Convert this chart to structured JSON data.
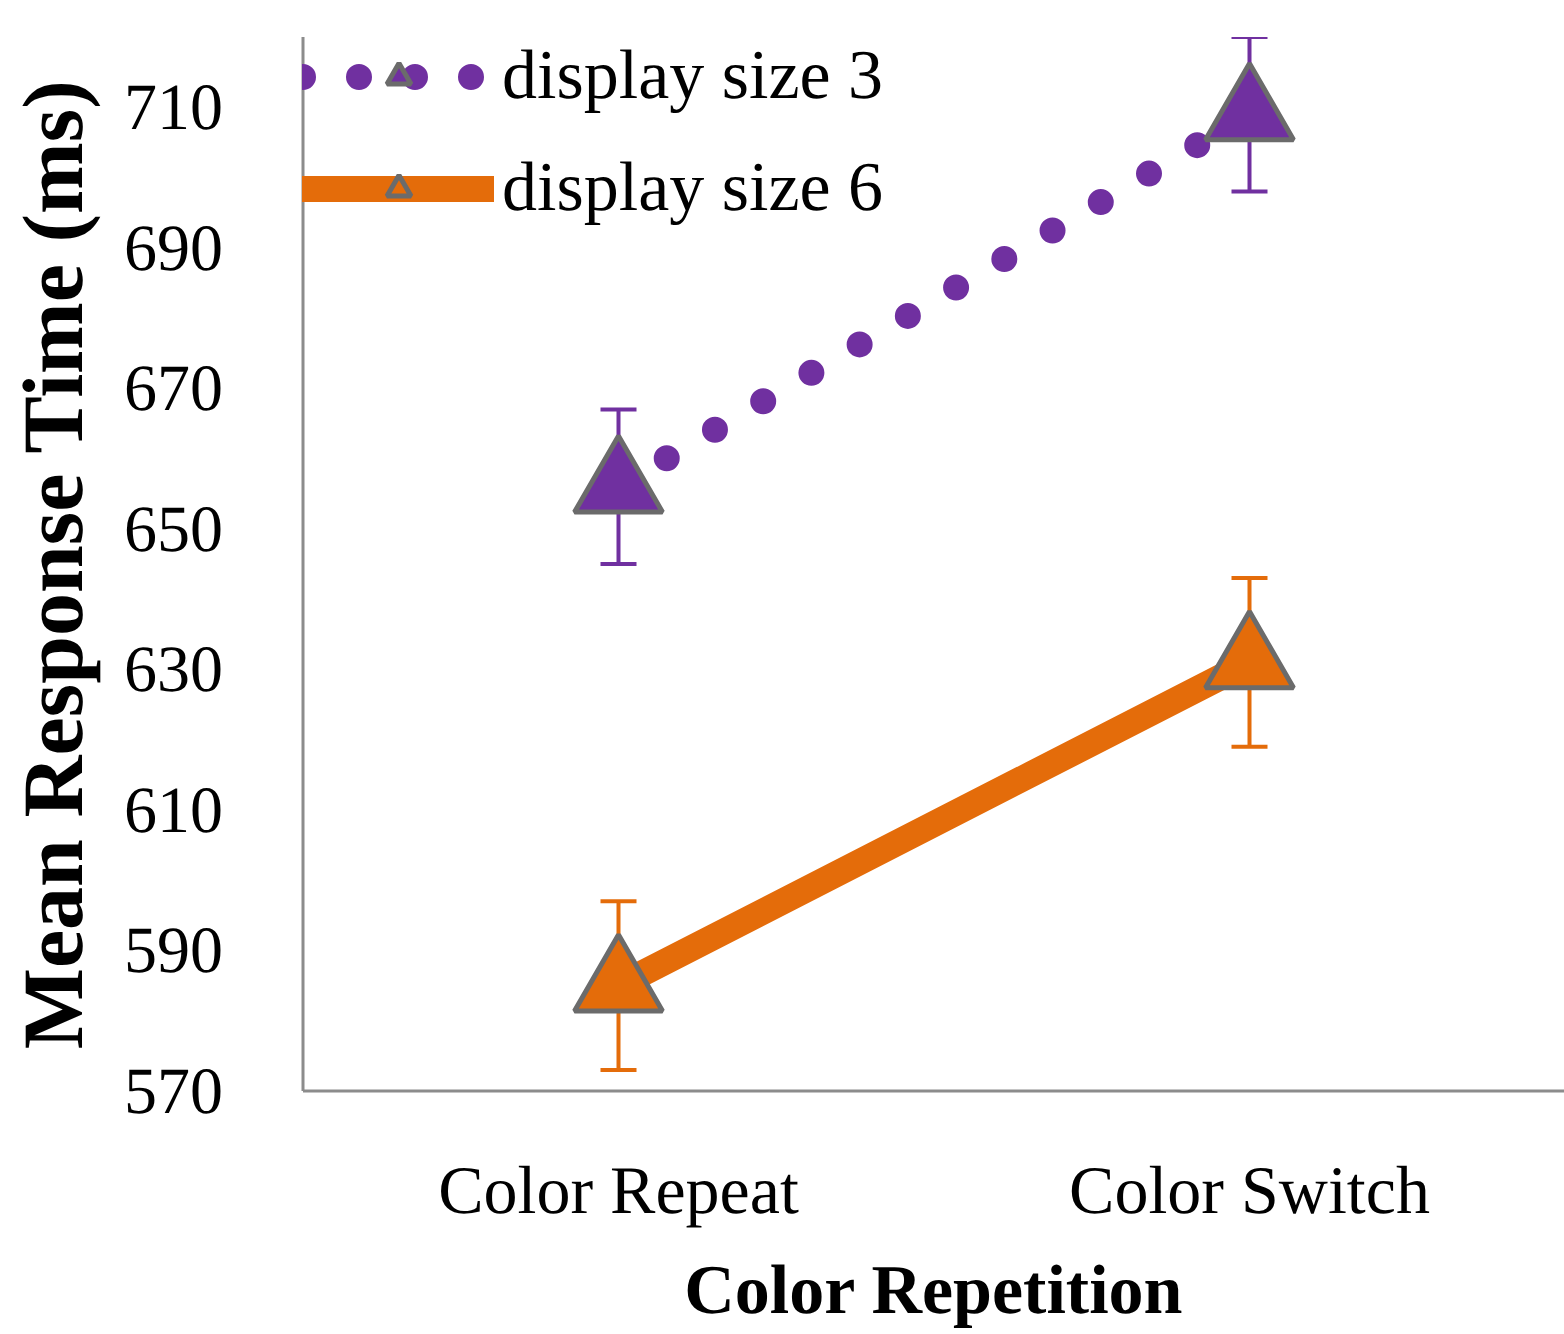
{
  "chart_data": {
    "type": "line",
    "xlabel": "Color Repetition",
    "ylabel": "Mean Response Time (ms)",
    "categories": [
      "Color Repeat",
      "Color Switch"
    ],
    "ylim": [
      570,
      720
    ],
    "yticks": [
      570,
      590,
      610,
      630,
      650,
      670,
      690,
      710
    ],
    "grid": false,
    "legend": "top left",
    "marker": "triangle",
    "series": [
      {
        "name": "display size 3",
        "color": "#7030a0",
        "values": [
          656,
          709
        ],
        "errors": [
          11,
          11
        ],
        "line_style": "dotted"
      },
      {
        "name": "display size 6",
        "color": "#e46c0a",
        "values": [
          585,
          631
        ],
        "errors": [
          12,
          12
        ],
        "line_style": "solid"
      }
    ]
  }
}
